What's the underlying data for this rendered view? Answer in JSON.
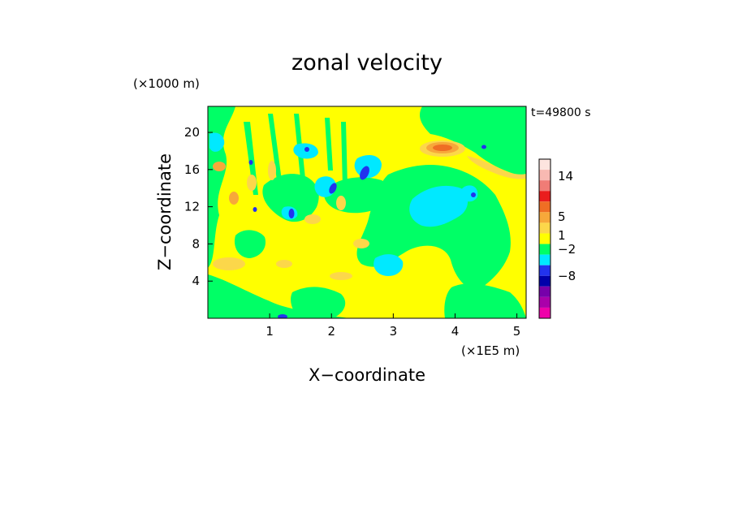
{
  "chart_data": {
    "type": "heatmap",
    "title": "zonal velocity",
    "xlabel": "X−coordinate",
    "ylabel": "Z−coordinate",
    "x_unit": "(×1E5 m)",
    "y_unit": "(×1000 m)",
    "time_label": "t=49800 s",
    "x_ticks": [
      1,
      2,
      3,
      4,
      5
    ],
    "y_ticks": [
      4,
      8,
      12,
      16,
      20
    ],
    "xlim": [
      0,
      5.15
    ],
    "ylim": [
      0,
      22.8
    ],
    "colorbar": {
      "tick_labels": [
        "14",
        "5",
        "1",
        "−2",
        "−8"
      ],
      "levels_top_to_bottom": [
        {
          "color": "#fde4df"
        },
        {
          "color": "#f8b9b2"
        },
        {
          "color": "#f07c76"
        },
        {
          "color": "#ea1d1d"
        },
        {
          "color": "#ef6e24"
        },
        {
          "color": "#f7a83a"
        },
        {
          "color": "#fcd74a"
        },
        {
          "color": "#ffff00"
        },
        {
          "color": "#00ff66"
        },
        {
          "color": "#00e9ff"
        },
        {
          "color": "#2233ee"
        },
        {
          "color": "#0000aa"
        },
        {
          "color": "#7700aa"
        },
        {
          "color": "#aa00aa"
        },
        {
          "color": "#ee00aa"
        }
      ]
    },
    "regions": [
      {
        "level": "green",
        "x": [
          0.0,
          0.4
        ],
        "z": [
          0.0,
          22.8
        ]
      },
      {
        "level": "green",
        "x": [
          3.5,
          5.15
        ],
        "z": [
          17.0,
          22.8
        ]
      },
      {
        "level": "green",
        "x": [
          3.0,
          4.4
        ],
        "z": [
          7.0,
          16.0
        ]
      },
      {
        "level": "cyan",
        "x": [
          3.3,
          4.1
        ],
        "z": [
          9.5,
          14.5
        ]
      },
      {
        "level": "yellow",
        "x": [
          0.2,
          3.5
        ],
        "z": [
          2.0,
          22.8
        ]
      },
      {
        "level": "orange",
        "x": [
          3.6,
          4.0
        ],
        "z": [
          17.0,
          18.5
        ]
      },
      {
        "level": "orange",
        "x": [
          0.0,
          1.8
        ],
        "z": [
          4.0,
          17.0
        ]
      },
      {
        "level": "blue",
        "x": [
          1.2,
          2.6
        ],
        "z": [
          10.0,
          16.5
        ]
      }
    ]
  }
}
